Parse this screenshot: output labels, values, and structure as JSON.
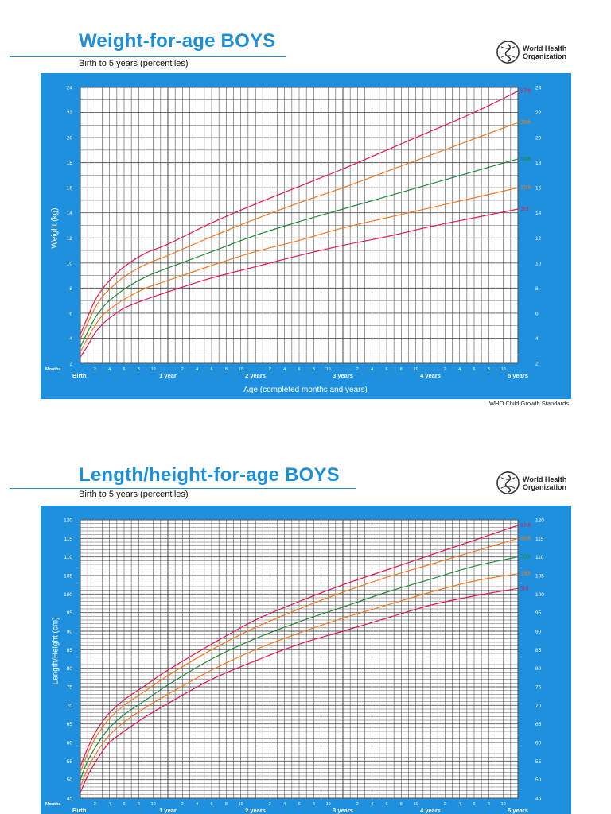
{
  "chart_data": [
    {
      "type": "line",
      "title": "Weight-for-age BOYS",
      "subtitle": "Birth to 5 years (percentiles)",
      "xlabel": "Age (completed months and years)",
      "ylabel": "Weight (kg)",
      "xlim": [
        0,
        60
      ],
      "ylim": [
        2,
        24
      ],
      "y_ticks": [
        2,
        4,
        6,
        8,
        10,
        12,
        14,
        16,
        18,
        20,
        22,
        24
      ],
      "grid": true,
      "month_axis_label": "Months",
      "month_ticks": [
        "2",
        "4",
        "6",
        "8",
        "10",
        "2",
        "4",
        "6",
        "8",
        "10",
        "2",
        "4",
        "6",
        "8",
        "10",
        "2",
        "4",
        "6",
        "8",
        "10",
        "2",
        "4",
        "6",
        "8",
        "10"
      ],
      "year_labels": [
        "Birth",
        "1 year",
        "2 years",
        "3 years",
        "4 years",
        "5 years"
      ],
      "x": [
        0,
        1,
        2,
        3,
        4,
        6,
        9,
        12,
        18,
        24,
        30,
        36,
        42,
        48,
        54,
        60
      ],
      "series": [
        {
          "name": "97th",
          "color": "#e5174d",
          "values": [
            4.3,
            5.7,
            7.0,
            7.9,
            8.6,
            9.7,
            10.8,
            11.5,
            13.2,
            14.7,
            16.1,
            17.5,
            19.0,
            20.5,
            22.0,
            23.7
          ]
        },
        {
          "name": "85th",
          "color": "#f47920",
          "values": [
            3.9,
            5.2,
            6.4,
            7.3,
            7.9,
            8.9,
            9.9,
            10.6,
            12.1,
            13.5,
            14.8,
            16.0,
            17.3,
            18.6,
            19.9,
            21.2
          ]
        },
        {
          "name": "50th",
          "color": "#1f8a3a",
          "values": [
            3.3,
            4.5,
            5.6,
            6.4,
            7.0,
            7.9,
            8.9,
            9.6,
            10.9,
            12.2,
            13.3,
            14.3,
            15.3,
            16.3,
            17.3,
            18.3
          ]
        },
        {
          "name": "15th",
          "color": "#f47920",
          "values": [
            2.9,
            4.0,
            5.0,
            5.8,
            6.3,
            7.1,
            8.0,
            8.6,
            9.8,
            10.9,
            11.8,
            12.8,
            13.6,
            14.4,
            15.2,
            16.0
          ]
        },
        {
          "name": "3rd",
          "color": "#e5174d",
          "values": [
            2.5,
            3.4,
            4.4,
            5.1,
            5.6,
            6.4,
            7.1,
            7.7,
            8.8,
            9.7,
            10.6,
            11.4,
            12.1,
            12.9,
            13.6,
            14.3
          ]
        }
      ]
    },
    {
      "type": "line",
      "title": "Length/height-for-age BOYS",
      "subtitle": "Birth to 5 years (percentiles)",
      "xlabel": "",
      "ylabel": "Length/Height (cm)",
      "xlim": [
        0,
        60
      ],
      "ylim": [
        45,
        120
      ],
      "y_ticks": [
        45,
        50,
        55,
        60,
        65,
        70,
        75,
        80,
        85,
        90,
        95,
        100,
        105,
        110,
        115,
        120
      ],
      "grid": true,
      "month_axis_label": "Months",
      "month_ticks": [
        "2",
        "4",
        "6",
        "8",
        "10",
        "2",
        "4",
        "6",
        "8",
        "10",
        "2",
        "4",
        "6",
        "8",
        "10",
        "2",
        "4",
        "6",
        "8",
        "10",
        "2",
        "4",
        "6",
        "8",
        "10"
      ],
      "year_labels": [
        "Birth",
        "1 year",
        "2 years",
        "3 years",
        "4 years",
        "5 years"
      ],
      "x": [
        0,
        1,
        2,
        3,
        4,
        6,
        9,
        12,
        18,
        24,
        30,
        36,
        42,
        48,
        54,
        60
      ],
      "series": [
        {
          "name": "97th",
          "color": "#e5174d",
          "values": [
            53.5,
            58.5,
            62.5,
            65.5,
            68.0,
            71.5,
            75.5,
            79.5,
            86.5,
            93.0,
            98.0,
            102.5,
            106.5,
            110.5,
            114.5,
            118.5
          ]
        },
        {
          "name": "85th",
          "color": "#f47920",
          "values": [
            52.0,
            57.0,
            61.0,
            64.0,
            66.5,
            70.0,
            74.0,
            78.0,
            85.0,
            91.0,
            96.0,
            100.5,
            104.5,
            108.0,
            111.5,
            115.0
          ]
        },
        {
          "name": "50th",
          "color": "#1f8a3a",
          "values": [
            50.0,
            55.0,
            58.5,
            61.5,
            64.0,
            67.5,
            71.5,
            75.5,
            82.5,
            88.0,
            92.5,
            96.5,
            100.5,
            104.0,
            107.5,
            110.0
          ]
        },
        {
          "name": "15th",
          "color": "#f47920",
          "values": [
            48.0,
            53.0,
            56.5,
            59.5,
            62.0,
            65.5,
            69.5,
            73.0,
            79.5,
            85.0,
            89.5,
            93.5,
            97.0,
            100.5,
            103.5,
            105.5
          ]
        },
        {
          "name": "3rd",
          "color": "#e5174d",
          "values": [
            46.5,
            51.0,
            54.5,
            57.5,
            60.0,
            63.0,
            67.0,
            70.5,
            77.0,
            82.0,
            86.5,
            90.0,
            93.5,
            97.0,
            99.5,
            101.5
          ]
        }
      ]
    }
  ],
  "organization": {
    "line1": "World Health",
    "line2": "Organization"
  },
  "footer": "WHO Child Growth Standards",
  "colors": {
    "panel": "#1e90dd",
    "grid": "#444444",
    "title": "#1e8fd6"
  }
}
